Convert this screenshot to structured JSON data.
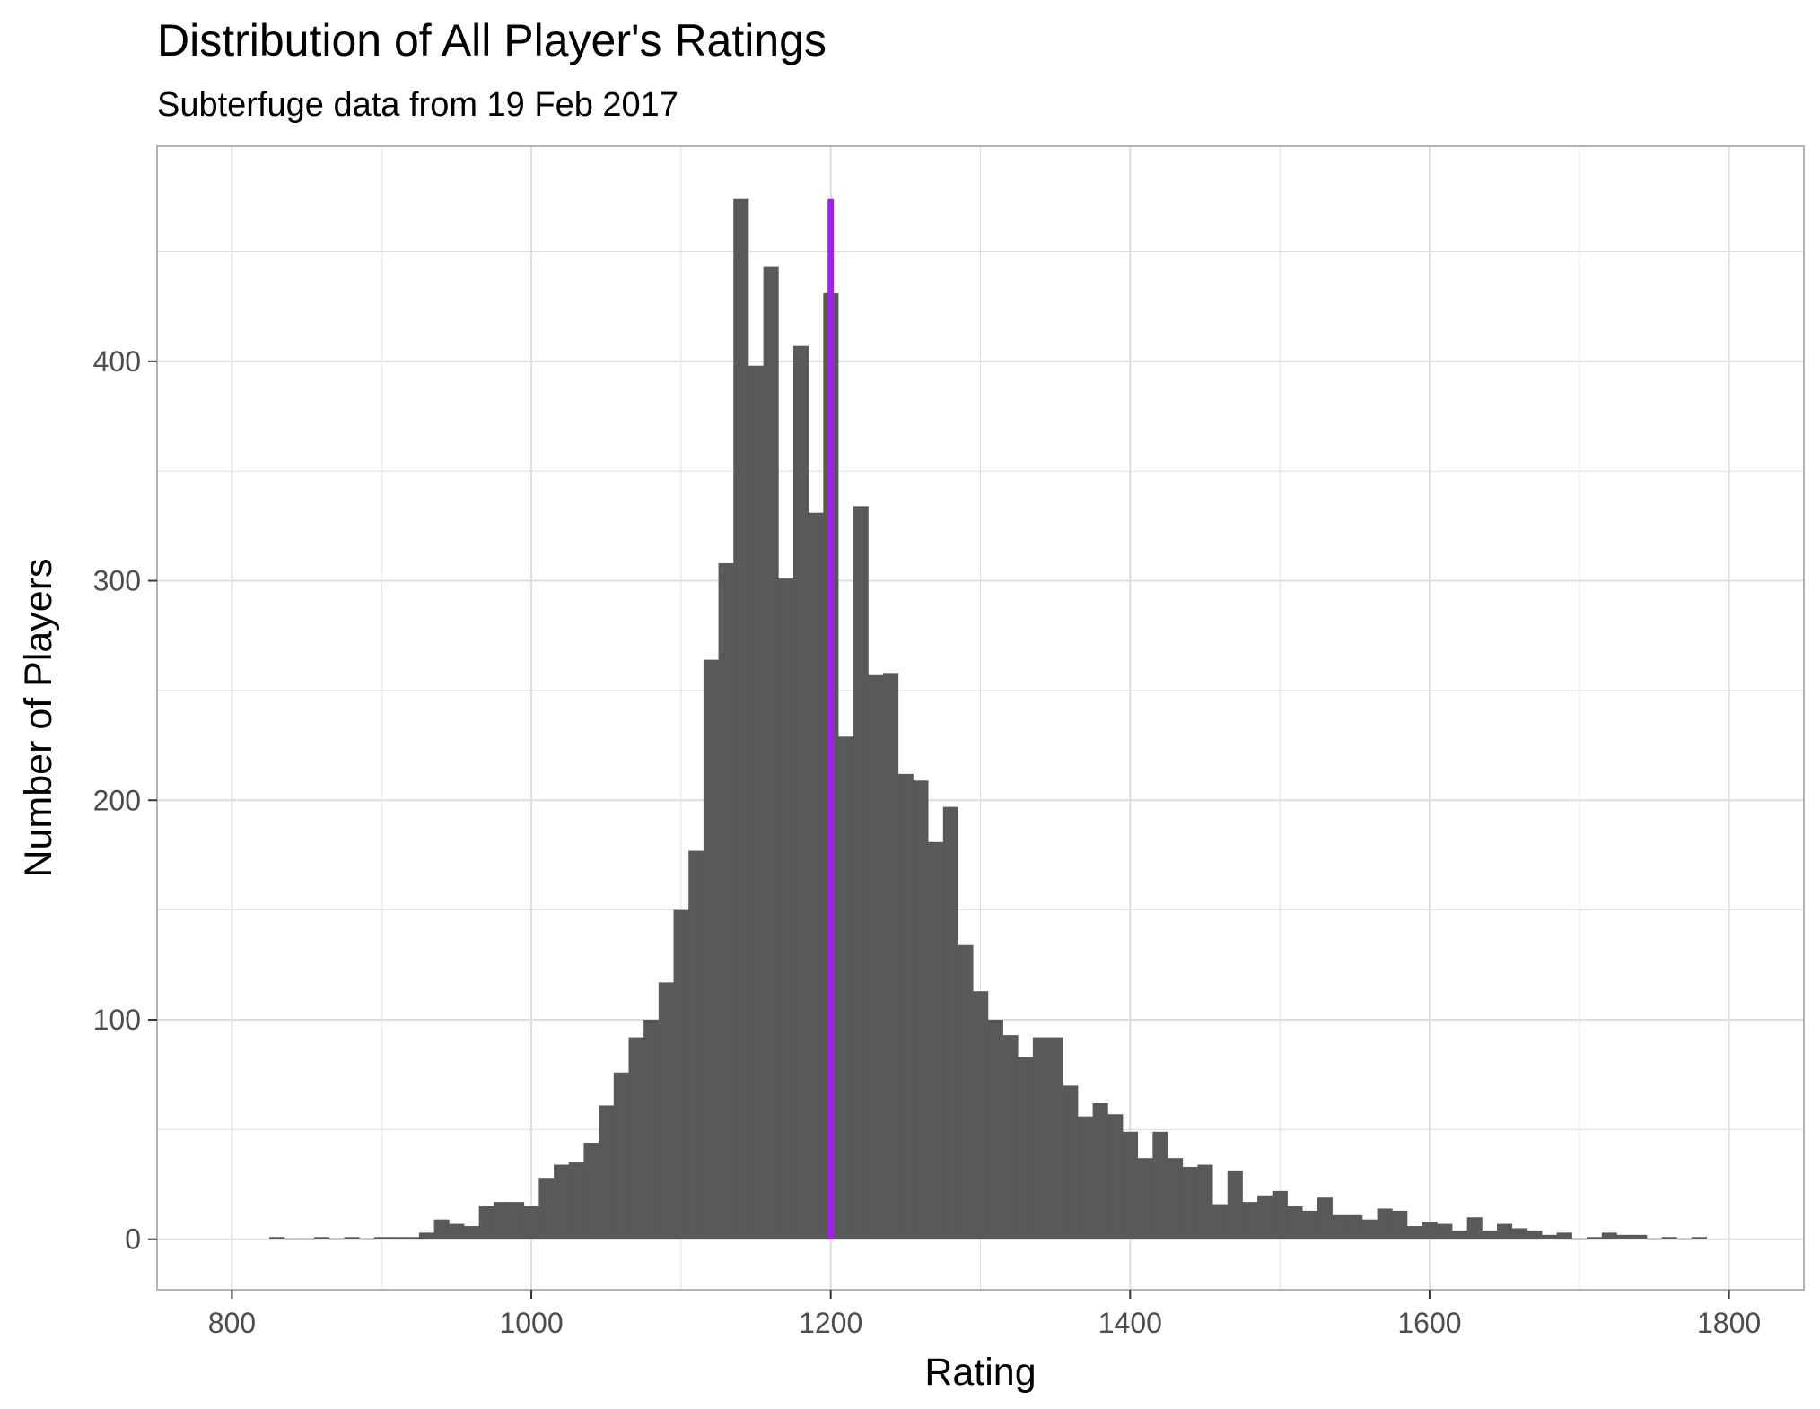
{
  "chart_data": {
    "type": "bar",
    "title": "Distribution of All Player's Ratings",
    "subtitle": "Subterfuge data from 19 Feb 2017",
    "xlabel": "Rating",
    "ylabel": "Number of Players",
    "xlim": [
      750,
      1850
    ],
    "ylim": [
      -23,
      498
    ],
    "x_ticks": [
      800,
      1000,
      1200,
      1400,
      1600,
      1800
    ],
    "y_ticks": [
      0,
      100,
      200,
      300,
      400
    ],
    "x_tick_labels": [
      "800",
      "1000",
      "1200",
      "1400",
      "1600",
      "1800"
    ],
    "y_tick_labels": [
      "0",
      "100",
      "200",
      "300",
      "400"
    ],
    "grid": true,
    "bin_width": 10,
    "bin_start": 825,
    "values": [
      1,
      0,
      0,
      1,
      0,
      1,
      0,
      1,
      1,
      1,
      3,
      9,
      7,
      6,
      15,
      17,
      17,
      15,
      28,
      34,
      35,
      44,
      61,
      76,
      92,
      100,
      117,
      150,
      177,
      264,
      308,
      474,
      398,
      443,
      301,
      407,
      331,
      431,
      229,
      334,
      257,
      258,
      212,
      209,
      181,
      197,
      134,
      113,
      100,
      93,
      83,
      92,
      92,
      70,
      56,
      62,
      57,
      49,
      37,
      49,
      37,
      33,
      34,
      16,
      31,
      17,
      20,
      22,
      15,
      13,
      19,
      11,
      11,
      9,
      14,
      13,
      6,
      8,
      7,
      4,
      10,
      4,
      7,
      5,
      4,
      2,
      3,
      0,
      1,
      3,
      2,
      2,
      0,
      1,
      0,
      1
    ],
    "vline": {
      "x": 1200,
      "color": "#A020F0"
    },
    "bar_color": "#595959",
    "grid_color": "#dedede",
    "panel_border_color": "#b3b3b3"
  }
}
